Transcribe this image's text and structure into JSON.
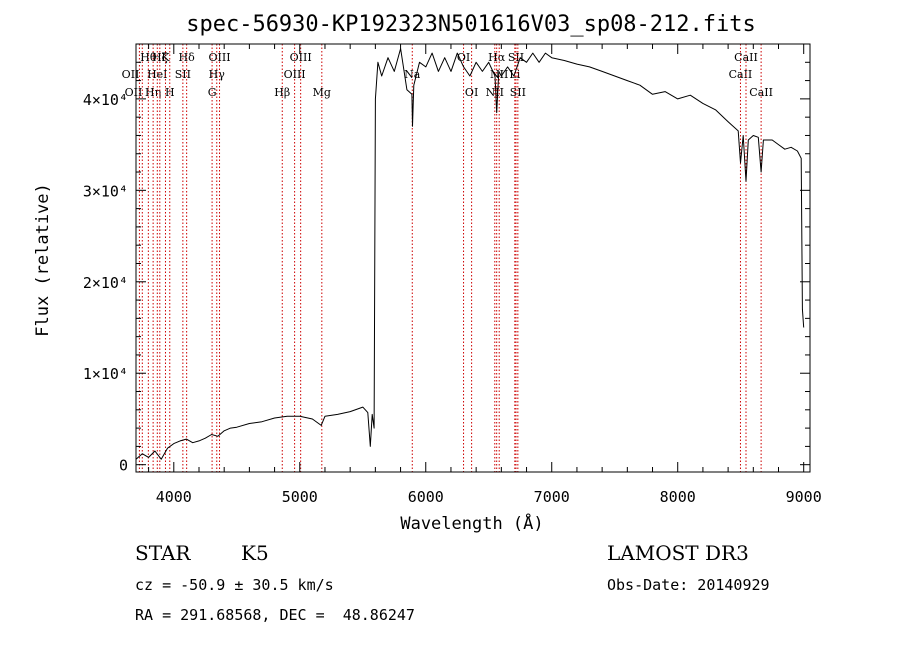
{
  "chart_data": {
    "type": "line",
    "title": "spec-56930-KP192323N501616V03_sp08-212.fits",
    "xlabel": "Wavelength (Å)",
    "ylabel": "Flux (relative)",
    "xlim": [
      3700,
      9050
    ],
    "ylim": [
      -800,
      46000
    ],
    "x_ticks": [
      {
        "value": 4000,
        "label": "4000"
      },
      {
        "value": 5000,
        "label": "5000"
      },
      {
        "value": 6000,
        "label": "6000"
      },
      {
        "value": 7000,
        "label": "7000"
      },
      {
        "value": 8000,
        "label": "8000"
      },
      {
        "value": 9000,
        "label": "9000"
      }
    ],
    "y_ticks": [
      {
        "value": 0,
        "label": "0"
      },
      {
        "value": 10000,
        "label": "1×10⁴"
      },
      {
        "value": 20000,
        "label": "2×10⁴"
      },
      {
        "value": 30000,
        "label": "3×10⁴"
      },
      {
        "value": 40000,
        "label": "4×10⁴"
      }
    ],
    "series": [
      {
        "name": "flux",
        "x": [
          3700,
          3750,
          3800,
          3850,
          3900,
          3950,
          4000,
          4050,
          4100,
          4150,
          4200,
          4250,
          4300,
          4350,
          4400,
          4450,
          4500,
          4600,
          4700,
          4800,
          4900,
          5000,
          5100,
          5170,
          5200,
          5300,
          5400,
          5500,
          5540,
          5560,
          5575,
          5590,
          5600,
          5620,
          5650,
          5700,
          5750,
          5800,
          5850,
          5890,
          5895,
          5905,
          5950,
          6000,
          6050,
          6100,
          6150,
          6200,
          6250,
          6300,
          6350,
          6400,
          6450,
          6500,
          6550,
          6563,
          6580,
          6600,
          6650,
          6700,
          6750,
          6800,
          6850,
          6900,
          6950,
          7000,
          7100,
          7200,
          7300,
          7400,
          7500,
          7600,
          7700,
          7800,
          7900,
          8000,
          8100,
          8200,
          8300,
          8400,
          8480,
          8498,
          8520,
          8542,
          8560,
          8600,
          8640,
          8662,
          8680,
          8750,
          8800,
          8850,
          8900,
          8950,
          8980,
          8990,
          9000
        ],
        "y": [
          600,
          1200,
          800,
          1500,
          600,
          1800,
          2300,
          2600,
          2800,
          2400,
          2600,
          2900,
          3300,
          3100,
          3700,
          4000,
          4100,
          4500,
          4700,
          5100,
          5300,
          5300,
          5000,
          4300,
          5300,
          5500,
          5800,
          6300,
          5700,
          2000,
          5500,
          4000,
          40000,
          44000,
          42500,
          44500,
          43000,
          45500,
          41000,
          40500,
          37000,
          41500,
          44000,
          43500,
          45000,
          43000,
          44500,
          43000,
          45000,
          43500,
          42500,
          44000,
          43000,
          44000,
          42500,
          38500,
          43000,
          42500,
          43500,
          42500,
          44500,
          44000,
          45000,
          44000,
          45000,
          44500,
          44200,
          43800,
          43500,
          43000,
          42500,
          42000,
          41500,
          40500,
          40800,
          40000,
          40400,
          39500,
          38800,
          37500,
          36500,
          33000,
          36000,
          31000,
          35500,
          36000,
          35800,
          32000,
          35500,
          35500,
          35000,
          34500,
          34700,
          34300,
          33500,
          17000,
          15000
        ]
      }
    ],
    "lines": [
      {
        "wave": 3727,
        "label": "OII",
        "row": 2,
        "anchor": "end"
      },
      {
        "wave": 3750,
        "label": "OII",
        "row": 3,
        "anchor": "end"
      },
      {
        "wave": 3798,
        "label": "Hθ",
        "row": 1,
        "anchor": "middle"
      },
      {
        "wave": 3836,
        "label": "Hη",
        "row": 3,
        "anchor": "middle"
      },
      {
        "wave": 3869,
        "label": "HeI",
        "row": 2,
        "anchor": "middle"
      },
      {
        "wave": 3889,
        "label": "Hζ",
        "row": 1,
        "anchor": "middle"
      },
      {
        "wave": 3934,
        "label": "K",
        "row": 1,
        "anchor": "middle"
      },
      {
        "wave": 3968,
        "label": "H",
        "row": 3,
        "anchor": "middle"
      },
      {
        "wave": 4072,
        "label": "SII",
        "row": 2,
        "anchor": "middle"
      },
      {
        "wave": 4102,
        "label": "Hδ",
        "row": 1,
        "anchor": "middle"
      },
      {
        "wave": 4304,
        "label": "G",
        "row": 3,
        "anchor": "middle"
      },
      {
        "wave": 4341,
        "label": "Hγ",
        "row": 2,
        "anchor": "middle"
      },
      {
        "wave": 4363,
        "label": "OIII",
        "row": 1,
        "anchor": "middle"
      },
      {
        "wave": 4861,
        "label": "Hβ",
        "row": 3,
        "anchor": "middle"
      },
      {
        "wave": 4959,
        "label": "OIII",
        "row": 2,
        "anchor": "middle"
      },
      {
        "wave": 5007,
        "label": "OIII",
        "row": 1,
        "anchor": "middle"
      },
      {
        "wave": 5175,
        "label": "Mg",
        "row": 3,
        "anchor": "middle"
      },
      {
        "wave": 5893,
        "label": "Na",
        "row": 2,
        "anchor": "middle"
      },
      {
        "wave": 6300,
        "label": "OI",
        "row": 1,
        "anchor": "middle"
      },
      {
        "wave": 6364,
        "label": "OI",
        "row": 3,
        "anchor": "middle"
      },
      {
        "wave": 6548,
        "label": "NII",
        "row": 3,
        "anchor": "middle"
      },
      {
        "wave": 6563,
        "label": "Hα",
        "row": 1,
        "anchor": "middle"
      },
      {
        "wave": 6583,
        "label": "NII",
        "row": 2,
        "anchor": "middle"
      },
      {
        "wave": 6707,
        "label": "Li",
        "row": 2,
        "anchor": "middle"
      },
      {
        "wave": 6716,
        "label": "SII",
        "row": 1,
        "anchor": "middle"
      },
      {
        "wave": 6731,
        "label": "SII",
        "row": 3,
        "anchor": "middle"
      },
      {
        "wave": 8498,
        "label": "CaII",
        "row": 2,
        "anchor": "middle"
      },
      {
        "wave": 8542,
        "label": "CaII",
        "row": 1,
        "anchor": "middle"
      },
      {
        "wave": 8662,
        "label": "CaII",
        "row": 3,
        "anchor": "middle"
      }
    ],
    "line_color": "#cc0000",
    "spectrum_color": "#000000"
  },
  "info": {
    "object_class": "STAR",
    "subclass": "K5",
    "survey": "LAMOST DR3",
    "redshift": "cz = -50.9 ± 30.5 km/s",
    "obs_date": "Obs-Date: 20140929",
    "coords": "RA = 291.68568, DEC =  48.86247"
  }
}
